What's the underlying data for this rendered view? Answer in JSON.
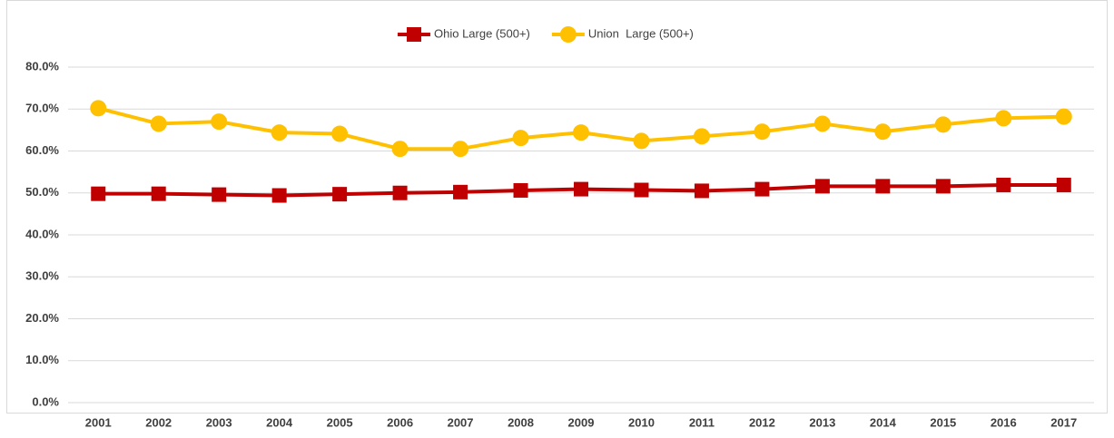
{
  "chart_data": {
    "type": "line",
    "categories": [
      "2001",
      "2002",
      "2003",
      "2004",
      "2005",
      "2006",
      "2007",
      "2008",
      "2009",
      "2010",
      "2011",
      "2012",
      "2013",
      "2014",
      "2015",
      "2016",
      "2017"
    ],
    "series": [
      {
        "name": "Ohio Large (500+)",
        "color": "#c00000",
        "marker": "square",
        "values": [
          49.8,
          49.8,
          49.6,
          49.4,
          49.7,
          50.0,
          50.2,
          50.6,
          50.9,
          50.7,
          50.5,
          50.9,
          51.6,
          51.6,
          51.6,
          51.9,
          51.9
        ]
      },
      {
        "name": "Union  Large (500+)",
        "color": "#ffc000",
        "marker": "circle",
        "values": [
          70.2,
          66.5,
          67.0,
          64.4,
          64.1,
          60.5,
          60.5,
          63.1,
          64.4,
          62.4,
          63.5,
          64.6,
          66.5,
          64.6,
          66.3,
          67.8,
          68.2
        ]
      }
    ],
    "ylim": [
      0,
      80
    ],
    "yticks": [
      {
        "value": 0,
        "label": "0.0%"
      },
      {
        "value": 10,
        "label": "10.0%"
      },
      {
        "value": 20,
        "label": "20.0%"
      },
      {
        "value": 30,
        "label": "30.0%"
      },
      {
        "value": 40,
        "label": "40.0%"
      },
      {
        "value": 50,
        "label": "50.0%"
      },
      {
        "value": 60,
        "label": "60.0%"
      },
      {
        "value": 70,
        "label": "70.0%"
      },
      {
        "value": 80,
        "label": "80.0%"
      }
    ],
    "grid": true,
    "legend": "top"
  }
}
